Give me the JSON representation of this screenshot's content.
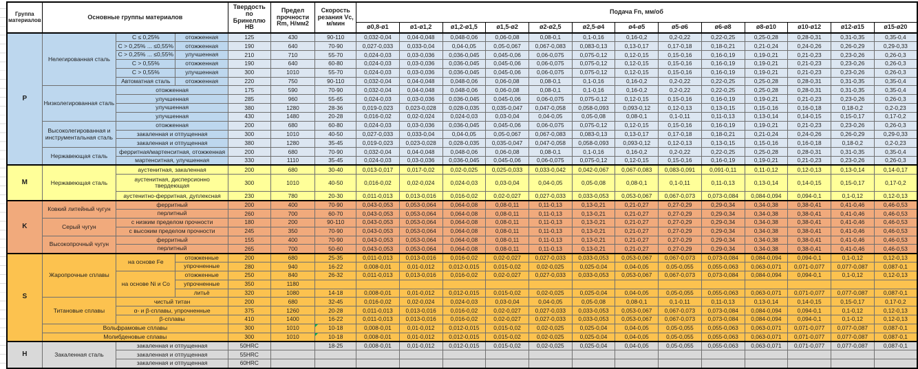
{
  "header": {
    "group_col": "Группа материалов",
    "materials_col": "Основные группы материалов",
    "hardness_col": "Твердость по Бринеллю HB",
    "strength_col": "Предел прочности Rm, Н/мм2",
    "speed_col": "Скорость резания Vc, м/мин",
    "feed_col": "Подача Fn, мм/об",
    "feed_cols": [
      "ø0,8-ø1",
      "ø1-ø1,2",
      "ø1,2-ø1,5",
      "ø1,5-ø2",
      "ø2-ø2,5",
      "ø2,5-ø4",
      "ø4-ø5",
      "ø5-ø6",
      "ø6-ø8",
      "ø8-ø10",
      "ø10-ø12",
      "ø12-ø15",
      "ø15-ø20"
    ]
  },
  "colors": {
    "p_label": "#BDD7EE",
    "p_data": "#DCE6F1",
    "m": "#FFFF99",
    "k": "#F1AA7C",
    "s": "#FCC24F",
    "h": "#D9D9D9",
    "green_mark": "#00B050"
  },
  "feed_sets": {
    "A": [
      "0,032-0,04",
      "0,04-0,048",
      "0,048-0,06",
      "0,06-0,08",
      "0,08-0,1",
      "0,1-0,16",
      "0,16-0,2",
      "0,2-0,22",
      "0,22-0,25",
      "0,25-0,28",
      "0,28-0,31",
      "0,31-0,35",
      "0,35-0,4"
    ],
    "B": [
      "0,027-0,033",
      "0,033-0,04",
      "0,04-0,05",
      "0,05-0,067",
      "0,067-0,083",
      "0,083-0,13",
      "0,13-0,17",
      "0,17-0,18",
      "0,18-0,21",
      "0,21-0,24",
      "0,24-0,26",
      "0,26-0,29",
      "0,29-0,33"
    ],
    "C": [
      "0,024-0,03",
      "0,03-0,036",
      "0,036-0,045",
      "0,045-0,06",
      "0,06-0,075",
      "0,075-0,12",
      "0,12-0,15",
      "0,15-0,16",
      "0,16-0,19",
      "0,19-0,21",
      "0,21-0,23",
      "0,23-0,26",
      "0,26-0,3"
    ],
    "D": [
      "0,019-0,023",
      "0,023-0,028",
      "0,028-0,035",
      "0,035-0,047",
      "0,047-0,058",
      "0,058-0,093",
      "0,093-0,12",
      "0,12-0,13",
      "0,13-0,15",
      "0,15-0,16",
      "0,16-0,18",
      "0,18-0,2",
      "0,2-0,23"
    ],
    "E": [
      "0,016-0,02",
      "0,02-0,024",
      "0,024-0,03",
      "0,03-0,04",
      "0,04-0,05",
      "0,05-0,08",
      "0,08-0,1",
      "0,1-0,11",
      "0,11-0,13",
      "0,13-0,14",
      "0,14-0,15",
      "0,15-0,17",
      "0,17-0,2"
    ],
    "M1": [
      "0,013-0,017",
      "0,017-0,02",
      "0,02-0,025",
      "0,025-0,033",
      "0,033-0,042",
      "0,042-0,067",
      "0,067-0,083",
      "0,083-0,091",
      "0,091-0,11",
      "0,11-0,12",
      "0,12-0,13",
      "0,13-0,14",
      "0,14-0,17"
    ],
    "S1": [
      "0,011-0,013",
      "0,013-0,016",
      "0,016-0,02",
      "0,02-0,027",
      "0,027-0,033",
      "0,033-0,053",
      "0,053-0,067",
      "0,067-0,073",
      "0,073-0,084",
      "0,084-0,094",
      "0,094-0,1",
      "0,1-0,12",
      "0,12-0,13"
    ],
    "S2": [
      "0,008-0,01",
      "0,01-0,012",
      "0,012-0,015",
      "0,015-0,02",
      "0,02-0,025",
      "0,025-0,04",
      "0,04-0,05",
      "0,05-0,055",
      "0,055-0,063",
      "0,063-0,071",
      "0,071-0,077",
      "0,077-0,087",
      "0,087-0,1"
    ],
    "K": [
      "0,043-0,053",
      "0,053-0,064",
      "0,064-0,08",
      "0,08-0,11",
      "0,11-0,13",
      "0,13-0,21",
      "0,21-0,27",
      "0,27-0,29",
      "0,29-0,34",
      "0,34-0,38",
      "0,38-0,41",
      "0,41-0,46",
      "0,46-0,53"
    ]
  },
  "groups": [
    {
      "letter": "P",
      "color": "p",
      "rows": [
        {
          "labels": [
            {
              "t": "Нелегированная сталь",
              "rs": 6
            },
            {
              "t": "C ≤ 0,25%"
            },
            {
              "t": "отожженная"
            }
          ],
          "hb": "125",
          "rm": "430",
          "vc": "90-110",
          "feeds": "A"
        },
        {
          "labels": [
            {
              "t": "C > 0,25% ... ≤0,55%"
            },
            {
              "t": "отожженная"
            }
          ],
          "hb": "190",
          "rm": "640",
          "vc": "70-90",
          "feeds": "B"
        },
        {
          "labels": [
            {
              "t": "C > 0,25% ... ≤0,55%"
            },
            {
              "t": "улучшенная"
            }
          ],
          "hb": "210",
          "rm": "710",
          "vc": "55-70",
          "feeds": "C"
        },
        {
          "labels": [
            {
              "t": "C > 0,55%"
            },
            {
              "t": "отожженная"
            }
          ],
          "hb": "190",
          "rm": "640",
          "vc": "60-80",
          "feeds": "C"
        },
        {
          "labels": [
            {
              "t": "C > 0,55%"
            },
            {
              "t": "улучшенная"
            }
          ],
          "hb": "300",
          "rm": "1010",
          "vc": "55-70",
          "feeds": "C"
        },
        {
          "labels": [
            {
              "t": "Автоматная сталь"
            },
            {
              "t": "отожженная"
            }
          ],
          "hb": "220",
          "rm": "750",
          "vc": "90-110",
          "feeds": "A"
        },
        {
          "sep": true,
          "labels": [
            {
              "t": "Низколегированная сталь",
              "rs": 4
            },
            {
              "t": "отожженная",
              "cs": 2
            }
          ],
          "hb": "175",
          "rm": "590",
          "vc": "70-90",
          "feeds": "A"
        },
        {
          "labels": [
            {
              "t": "улучшенная",
              "cs": 2
            }
          ],
          "hb": "285",
          "rm": "960",
          "vc": "55-65",
          "feeds": "C"
        },
        {
          "labels": [
            {
              "t": "улучшенная",
              "cs": 2
            }
          ],
          "hb": "380",
          "rm": "1280",
          "vc": "28-36",
          "feeds": "D"
        },
        {
          "labels": [
            {
              "t": "улучшенная",
              "cs": 2
            }
          ],
          "hb": "430",
          "rm": "1480",
          "vc": "20-28",
          "feeds": "E"
        },
        {
          "sep": true,
          "labels": [
            {
              "t": "Высоколегированная и инструментальная сталь",
              "rs": 3
            },
            {
              "t": "отожженная",
              "cs": 2
            }
          ],
          "hb": "200",
          "rm": "680",
          "vc": "60-80",
          "feeds": "C"
        },
        {
          "labels": [
            {
              "t": "закаленная и отпущенная",
              "cs": 2
            }
          ],
          "hb": "300",
          "rm": "1010",
          "vc": "40-50",
          "feeds": "B"
        },
        {
          "labels": [
            {
              "t": "закаленная и отпущенная",
              "cs": 2
            }
          ],
          "hb": "380",
          "rm": "1280",
          "vc": "35-45",
          "feeds": "D"
        },
        {
          "sep": true,
          "labels": [
            {
              "t": "Нержавеющая сталь",
              "rs": 2
            },
            {
              "t": "ферритная/мартенситная, отожженная",
              "cs": 2
            }
          ],
          "hb": "200",
          "rm": "680",
          "vc": "70-90",
          "feeds": "A"
        },
        {
          "labels": [
            {
              "t": "мартенситная, улучшенная",
              "cs": 2
            }
          ],
          "hb": "330",
          "rm": "1110",
          "vc": "35-45",
          "feeds": "C"
        }
      ]
    },
    {
      "letter": "M",
      "color": "m",
      "rows": [
        {
          "labels": [
            {
              "t": "Нержавеющая сталь",
              "rs": 3
            },
            {
              "t": "аустенитная, закаленная",
              "cs": 2
            }
          ],
          "hb": "200",
          "rm": "680",
          "vc": "30-40",
          "feeds": "M1"
        },
        {
          "tall": true,
          "labels": [
            {
              "t": "аустенитная, дисперсионно твердеющая",
              "cs": 2
            }
          ],
          "hb": "300",
          "rm": "1010",
          "vc": "40-50",
          "feeds": "E"
        },
        {
          "labels": [
            {
              "t": "аустенитно-ферритная, дуплексная",
              "cs": 2
            }
          ],
          "hb": "230",
          "rm": "780",
          "vc": "20-30",
          "feeds": "S1"
        }
      ]
    },
    {
      "letter": "K",
      "color": "k",
      "rows": [
        {
          "labels": [
            {
              "t": "Ковкий литейный чугун",
              "rs": 2
            },
            {
              "t": "ферритный",
              "cs": 2
            }
          ],
          "hb": "200",
          "rm": "400",
          "vc": "70-90",
          "feeds": "K"
        },
        {
          "labels": [
            {
              "t": "перлитный",
              "cs": 2
            }
          ],
          "hb": "260",
          "rm": "700",
          "vc": "60-70",
          "feeds": "K"
        },
        {
          "sep": true,
          "labels": [
            {
              "t": "Серый чугун",
              "rs": 2
            },
            {
              "t": "с низким пределом прочности",
              "cs": 2
            }
          ],
          "hb": "180",
          "rm": "200",
          "vc": "90-110",
          "feeds": "K"
        },
        {
          "labels": [
            {
              "t": "с высоким пределом прочности",
              "cs": 2
            }
          ],
          "hb": "245",
          "rm": "350",
          "vc": "70-90",
          "feeds": "K"
        },
        {
          "sep": true,
          "labels": [
            {
              "t": "Высокопрочный чугун",
              "rs": 2
            },
            {
              "t": "ферритный",
              "cs": 2
            }
          ],
          "hb": "155",
          "rm": "400",
          "vc": "70-90",
          "feeds": "K"
        },
        {
          "labels": [
            {
              "t": "перлитный",
              "cs": 2
            }
          ],
          "hb": "265",
          "rm": "700",
          "vc": "50-60",
          "feeds": "K"
        }
      ]
    },
    {
      "letter": "S",
      "color": "s",
      "rows": [
        {
          "labels": [
            {
              "t": "Жаропрочные сплавы",
              "rs": 5
            },
            {
              "t": "на основе Fe",
              "rs": 2
            },
            {
              "t": "отожженные"
            }
          ],
          "hb": "200",
          "rm": "680",
          "vc": "25-35",
          "feeds": "S1"
        },
        {
          "labels": [
            {
              "t": "упрочненные"
            }
          ],
          "hb": "280",
          "rm": "940",
          "vc": "16-22",
          "feeds": "S2"
        },
        {
          "labels": [
            {
              "t": "на основе Ni и Co",
              "rs": 3
            },
            {
              "t": "отожженные"
            }
          ],
          "hb": "250",
          "rm": "840",
          "vc": "26-32",
          "feeds": "S1"
        },
        {
          "labels": [
            {
              "t": "упрочненные"
            }
          ],
          "hb": "350",
          "rm": "1180",
          "vc": "",
          "feeds": null
        },
        {
          "labels": [
            {
              "t": "литьё"
            }
          ],
          "hb": "320",
          "rm": "1080",
          "vc": "14-18",
          "feeds": "S2"
        },
        {
          "sep": true,
          "labels": [
            {
              "t": "Титановые сплавы",
              "rs": 3
            },
            {
              "t": "чистый титан",
              "cs": 2
            }
          ],
          "hb": "200",
          "rm": "680",
          "vc": "32-45",
          "feeds": "E"
        },
        {
          "labels": [
            {
              "t": "α- и β-сплавы, упрочненные",
              "cs": 2
            }
          ],
          "hb": "375",
          "rm": "1260",
          "vc": "20-28",
          "feeds": "S1"
        },
        {
          "labels": [
            {
              "t": "β-сплавы",
              "cs": 2
            }
          ],
          "hb": "410",
          "rm": "1400",
          "vc": "16-22",
          "feeds": "S1"
        },
        {
          "sep": true,
          "labels": [
            {
              "t": "Вольфрамовые сплавы",
              "cs": 3
            }
          ],
          "hb": "300",
          "rm": "1010",
          "vc": "10-18",
          "green": true,
          "feeds": "S2"
        },
        {
          "sep": true,
          "labels": [
            {
              "t": "Молибденовые сплавы",
              "cs": 3
            }
          ],
          "hb": "300",
          "rm": "1010",
          "vc": "10-18",
          "green": true,
          "feeds": "S2"
        }
      ]
    },
    {
      "letter": "H",
      "color": "h",
      "rows": [
        {
          "labels": [
            {
              "t": "Закаленная сталь",
              "rs": 3
            },
            {
              "t": "закаленная и отпущенная",
              "cs": 2
            }
          ],
          "hb": "50HRC",
          "rm": "",
          "vc": "18-25",
          "feeds": "S2"
        },
        {
          "labels": [
            {
              "t": "закаленная и отпущенная",
              "cs": 2
            }
          ],
          "hb": "55HRC",
          "rm": "",
          "vc": "",
          "feeds": null
        },
        {
          "labels": [
            {
              "t": "закаленная и отпущенная",
              "cs": 2
            }
          ],
          "hb": "60HRC",
          "rm": "",
          "vc": "",
          "feeds": null
        }
      ]
    }
  ]
}
